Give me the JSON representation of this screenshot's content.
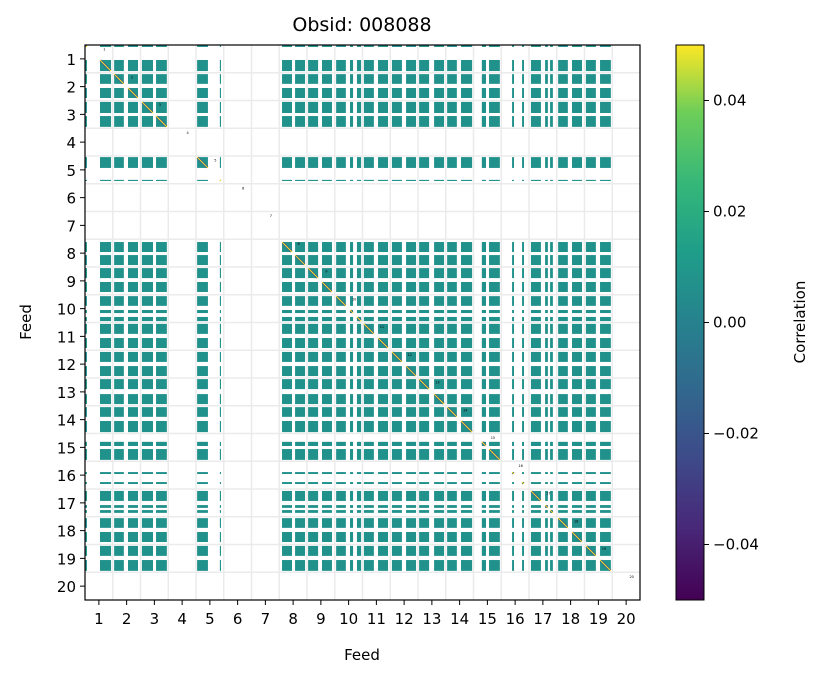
{
  "chart_data": {
    "type": "heatmap",
    "title": "Obsid: 008088",
    "xlabel": "Feed",
    "ylabel": "Feed",
    "xlim": [
      0.5,
      20.5
    ],
    "ylim": [
      20.5,
      0.5
    ],
    "x_ticks": [
      "1",
      "2",
      "3",
      "4",
      "5",
      "6",
      "7",
      "8",
      "9",
      "10",
      "11",
      "12",
      "13",
      "14",
      "15",
      "16",
      "17",
      "18",
      "19",
      "20"
    ],
    "y_ticks": [
      "1",
      "2",
      "3",
      "4",
      "5",
      "6",
      "7",
      "8",
      "9",
      "10",
      "11",
      "12",
      "13",
      "14",
      "15",
      "16",
      "17",
      "18",
      "19",
      "20"
    ],
    "grid": true,
    "off_diagonal_value": 0.0,
    "diagonal_value": 1.0,
    "active_segments_feed_units": [
      [
        0.5,
        0.57
      ],
      [
        1.04,
        1.44
      ],
      [
        1.55,
        1.9
      ],
      [
        2.05,
        2.41
      ],
      [
        2.55,
        2.95
      ],
      [
        3.06,
        3.45
      ],
      [
        4.54,
        4.93
      ],
      [
        5.36,
        5.4
      ],
      [
        7.6,
        7.96
      ],
      [
        8.07,
        8.43
      ],
      [
        8.54,
        8.9
      ],
      [
        9.04,
        9.4
      ],
      [
        9.55,
        9.9
      ],
      [
        10.05,
        10.16
      ],
      [
        10.3,
        10.45
      ],
      [
        10.55,
        10.91
      ],
      [
        11.06,
        11.42
      ],
      [
        11.56,
        11.92
      ],
      [
        12.07,
        12.43
      ],
      [
        12.54,
        12.9
      ],
      [
        13.08,
        13.44
      ],
      [
        13.55,
        13.9
      ],
      [
        14.05,
        14.45
      ],
      [
        14.8,
        14.95
      ],
      [
        15.06,
        15.45
      ],
      [
        15.89,
        15.96
      ],
      [
        16.25,
        16.32
      ],
      [
        16.57,
        16.93
      ],
      [
        17.08,
        17.18
      ],
      [
        17.26,
        17.36
      ],
      [
        17.55,
        17.9
      ],
      [
        18.05,
        18.41
      ],
      [
        18.55,
        18.91
      ],
      [
        19.06,
        19.45
      ]
    ],
    "diagonal_labels": [
      "1",
      "2",
      "3",
      "4",
      "5",
      "6",
      "7",
      "8",
      "9",
      "10",
      "11",
      "12",
      "13",
      "14",
      "15",
      "16",
      "17",
      "18",
      "19",
      "20"
    ],
    "colorbar": {
      "label": "Correlation",
      "range": [
        -0.05,
        0.05
      ],
      "ticks": [
        0.04,
        0.02,
        0.0,
        -0.02,
        -0.04
      ],
      "tick_labels": [
        "0.04",
        "0.02",
        "0.00",
        "−0.02",
        "−0.04"
      ],
      "colormap": "viridis"
    },
    "colors": {
      "zero": "#21918c",
      "diag": "#fde725",
      "diag_edge": "#3b528b",
      "grid": "#ebebeb"
    }
  }
}
